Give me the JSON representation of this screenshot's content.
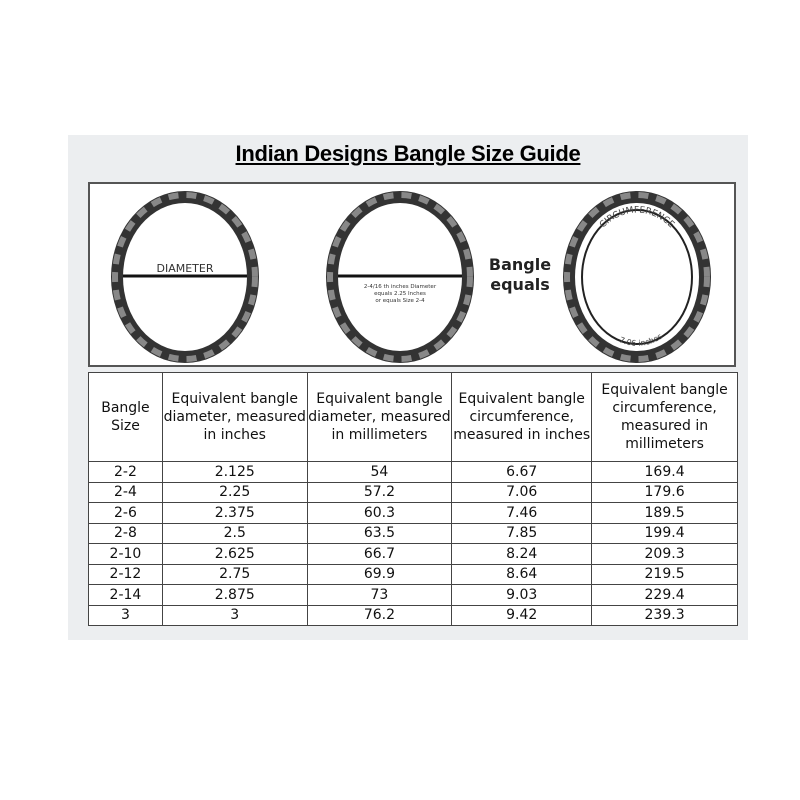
{
  "title": "Indian Designs Bangle Size Guide",
  "diagram": {
    "diameter_label": "DIAMETER",
    "example_lines": [
      "2-4/16 th inches Diameter",
      "equals 2.25 Inches",
      "or equals Size 2-4"
    ],
    "bangle_equals": [
      "Bangle",
      "equals"
    ],
    "circumference_label": "CIRCUMFERENCE",
    "circumference_value": "7.06 inches"
  },
  "table": {
    "headers": [
      "Bangle Size",
      "Equivalent bangle diameter, measured in inches",
      "Equivalent bangle diameter, measured in millimeters",
      "Equivalent bangle circumference, measured in inches",
      "Equivalent bangle circumference, measured in millimeters"
    ],
    "rows": [
      [
        "2-2",
        "2.125",
        "54",
        "6.67",
        "169.4"
      ],
      [
        "2-4",
        "2.25",
        "57.2",
        "7.06",
        "179.6"
      ],
      [
        "2-6",
        "2.375",
        "60.3",
        "7.46",
        "189.5"
      ],
      [
        "2-8",
        "2.5",
        "63.5",
        "7.85",
        "199.4"
      ],
      [
        "2-10",
        "2.625",
        "66.7",
        "8.24",
        "209.3"
      ],
      [
        "2-12",
        "2.75",
        "69.9",
        "8.64",
        "219.5"
      ],
      [
        "2-14",
        "2.875",
        "73",
        "9.03",
        "229.4"
      ],
      [
        "3",
        "3",
        "76.2",
        "9.42",
        "239.3"
      ]
    ]
  }
}
